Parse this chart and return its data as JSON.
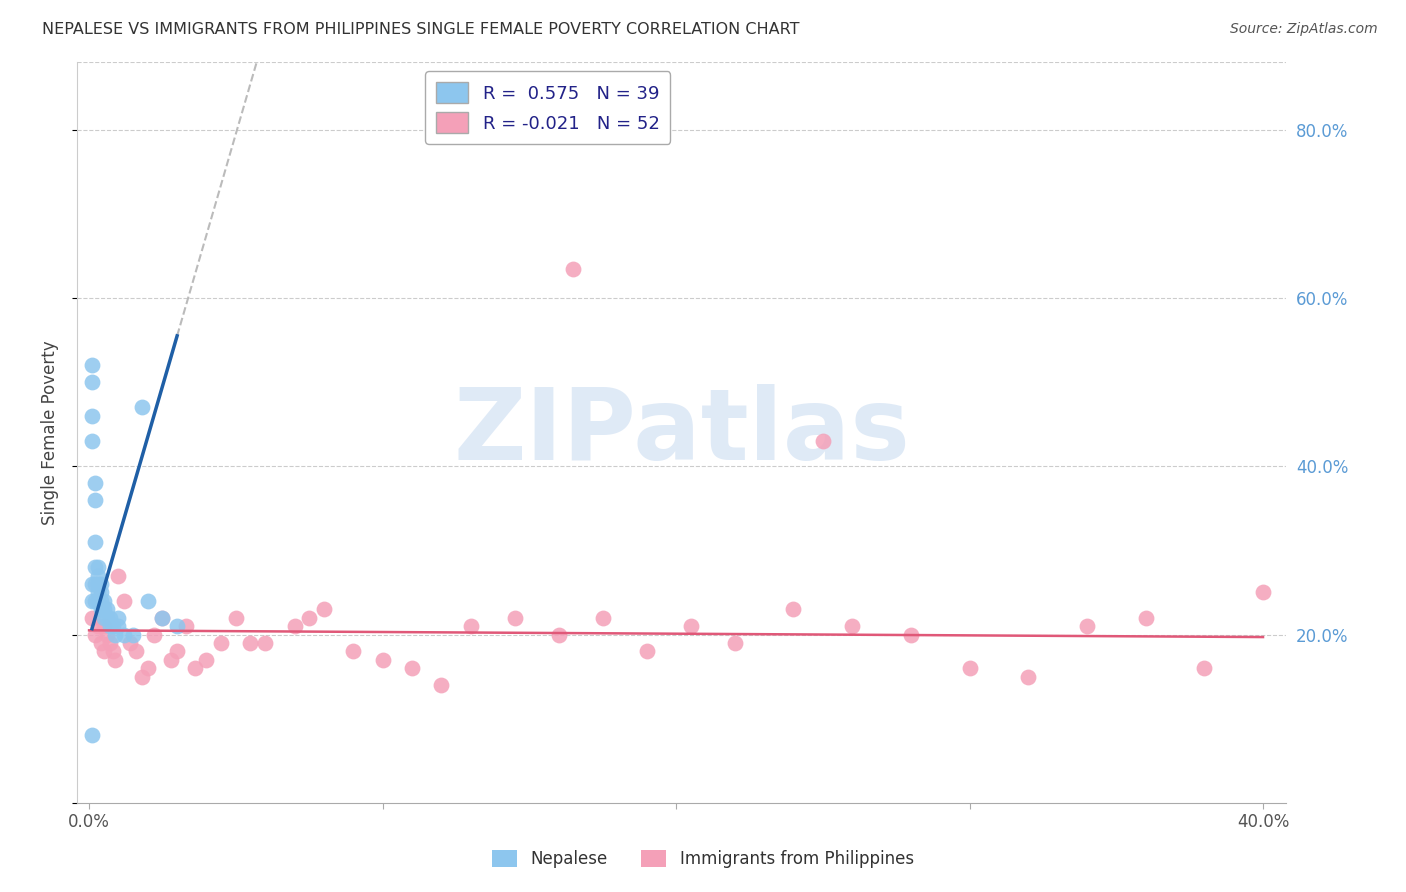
{
  "title": "NEPALESE VS IMMIGRANTS FROM PHILIPPINES SINGLE FEMALE POVERTY CORRELATION CHART",
  "source": "Source: ZipAtlas.com",
  "ylabel": "Single Female Poverty",
  "legend_r_nepalese": "0.575",
  "legend_n_nepalese": "39",
  "legend_r_philippines": "-0.021",
  "legend_n_philippines": "52",
  "nepalese_color": "#8DC6EE",
  "philippines_color": "#F4A0B8",
  "trendline_nepalese_color": "#1F5FA6",
  "trendline_philippines_color": "#E05878",
  "trendline_dash_color": "#BBBBBB",
  "grid_color": "#CCCCCC",
  "right_axis_color": "#5B9BD5",
  "xlim": [
    0.0,
    0.4
  ],
  "ylim": [
    0.0,
    0.88
  ],
  "nepalese_x": [
    0.001,
    0.001,
    0.001,
    0.001,
    0.001,
    0.001,
    0.002,
    0.002,
    0.002,
    0.002,
    0.002,
    0.002,
    0.003,
    0.003,
    0.003,
    0.003,
    0.003,
    0.004,
    0.004,
    0.004,
    0.004,
    0.005,
    0.005,
    0.005,
    0.006,
    0.006,
    0.007,
    0.007,
    0.008,
    0.009,
    0.01,
    0.01,
    0.012,
    0.015,
    0.018,
    0.02,
    0.025,
    0.03,
    0.001
  ],
  "nepalese_y": [
    0.52,
    0.5,
    0.46,
    0.43,
    0.26,
    0.24,
    0.38,
    0.36,
    0.31,
    0.28,
    0.26,
    0.24,
    0.28,
    0.27,
    0.26,
    0.25,
    0.24,
    0.26,
    0.25,
    0.24,
    0.23,
    0.24,
    0.23,
    0.22,
    0.23,
    0.22,
    0.22,
    0.21,
    0.21,
    0.2,
    0.22,
    0.21,
    0.2,
    0.2,
    0.47,
    0.24,
    0.22,
    0.21,
    0.08
  ],
  "philippines_x": [
    0.001,
    0.002,
    0.003,
    0.004,
    0.005,
    0.005,
    0.006,
    0.007,
    0.008,
    0.009,
    0.01,
    0.012,
    0.014,
    0.016,
    0.018,
    0.02,
    0.022,
    0.025,
    0.028,
    0.03,
    0.033,
    0.036,
    0.04,
    0.045,
    0.05,
    0.055,
    0.06,
    0.07,
    0.075,
    0.08,
    0.09,
    0.1,
    0.11,
    0.12,
    0.13,
    0.145,
    0.16,
    0.175,
    0.19,
    0.205,
    0.22,
    0.24,
    0.26,
    0.28,
    0.3,
    0.32,
    0.34,
    0.36,
    0.38,
    0.4,
    0.165,
    0.25
  ],
  "philippines_y": [
    0.22,
    0.2,
    0.21,
    0.19,
    0.21,
    0.18,
    0.2,
    0.19,
    0.18,
    0.17,
    0.27,
    0.24,
    0.19,
    0.18,
    0.15,
    0.16,
    0.2,
    0.22,
    0.17,
    0.18,
    0.21,
    0.16,
    0.17,
    0.19,
    0.22,
    0.19,
    0.19,
    0.21,
    0.22,
    0.23,
    0.18,
    0.17,
    0.16,
    0.14,
    0.21,
    0.22,
    0.2,
    0.22,
    0.18,
    0.21,
    0.19,
    0.23,
    0.21,
    0.2,
    0.16,
    0.15,
    0.21,
    0.22,
    0.16,
    0.25,
    0.635,
    0.43
  ],
  "nep_trend_x_start": 0.001,
  "nep_trend_x_solid_end": 0.03,
  "nep_trend_x_dash_end": 0.4,
  "nep_trend_slope": 12.0,
  "nep_trend_intercept": 0.195,
  "phi_trend_slope": -0.02,
  "phi_trend_intercept": 0.205,
  "watermark_text": "ZIPatlas"
}
